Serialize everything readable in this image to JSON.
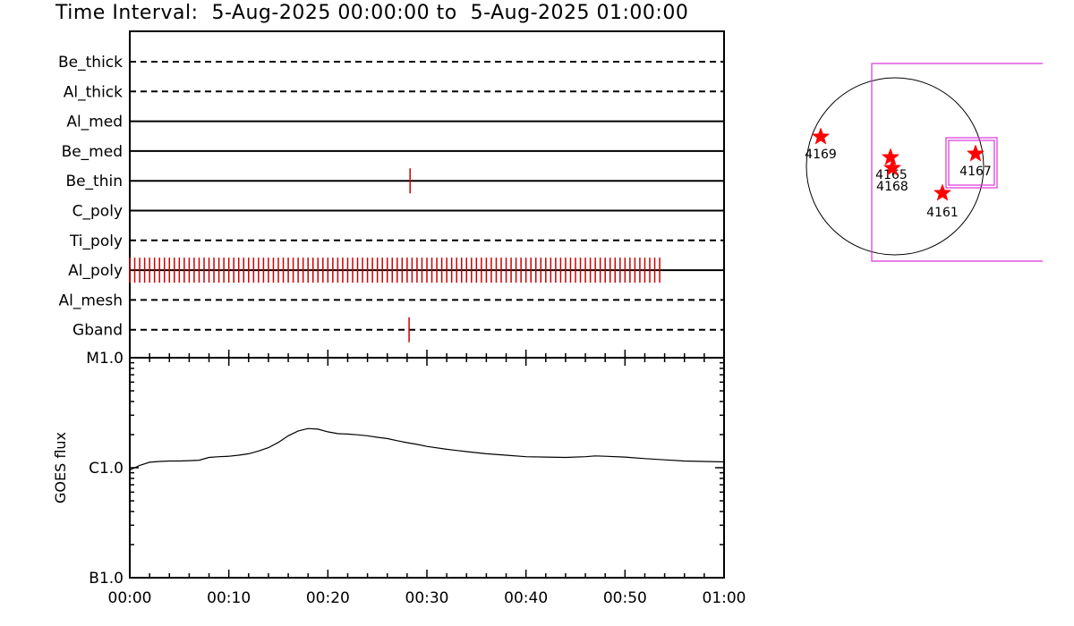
{
  "title": "Time Interval:  5-Aug-2025 00:00:00 to  5-Aug-2025 01:00:00",
  "colors": {
    "axis": "#000000",
    "event": "#cc0000",
    "star": "#ff0000",
    "box": "#dd33dd"
  },
  "chart_data": [
    {
      "type": "timeline",
      "x_unit": "minutes",
      "xlim": [
        0,
        60
      ],
      "channels": [
        {
          "name": "Be_thick",
          "style": "dashed",
          "events": []
        },
        {
          "name": "Al_thick",
          "style": "dashed",
          "events": []
        },
        {
          "name": "Al_med",
          "style": "solid",
          "events": []
        },
        {
          "name": "Be_med",
          "style": "solid",
          "events": []
        },
        {
          "name": "Be_thin",
          "style": "solid",
          "events": [
            28.3
          ]
        },
        {
          "name": "C_poly",
          "style": "solid",
          "events": []
        },
        {
          "name": "Ti_poly",
          "style": "dashed",
          "events": []
        },
        {
          "name": "Al_poly",
          "style": "solid",
          "events_range": [
            0,
            53.7
          ],
          "events_step": 0.5
        },
        {
          "name": "Al_mesh",
          "style": "dashed",
          "events": []
        },
        {
          "name": "Gband",
          "style": "dashed",
          "events": [
            28.2
          ]
        }
      ]
    },
    {
      "type": "line",
      "ylabel": "GOES flux",
      "y_scale": "log",
      "ylim": [
        1e-07,
        1e-05
      ],
      "ytick_labels": [
        "B1.0",
        "C1.0",
        "M1.0"
      ],
      "xtick_labels": [
        "00:00",
        "00:10",
        "00:20",
        "00:30",
        "00:40",
        "00:50",
        "01:00"
      ],
      "xlim": [
        0,
        60
      ],
      "x": [
        0,
        0.5,
        1,
        2,
        3,
        4,
        5,
        6,
        7,
        8,
        9,
        10,
        11,
        12,
        13,
        14,
        15,
        16,
        17,
        18,
        19,
        20,
        21,
        22,
        23,
        24,
        25,
        26,
        27,
        28,
        29,
        30,
        32,
        34,
        36,
        38,
        40,
        42,
        44,
        46,
        47,
        48,
        50,
        52,
        54,
        56,
        58,
        60
      ],
      "y": [
        9.5e-07,
        1e-06,
        1.05e-06,
        1.12e-06,
        1.14e-06,
        1.15e-06,
        1.15e-06,
        1.16e-06,
        1.17e-06,
        1.24e-06,
        1.26e-06,
        1.27e-06,
        1.3e-06,
        1.34e-06,
        1.42e-06,
        1.52e-06,
        1.7e-06,
        1.95e-06,
        2.16e-06,
        2.27e-06,
        2.24e-06,
        2.12e-06,
        2.04e-06,
        2.02e-06,
        1.99e-06,
        1.95e-06,
        1.89e-06,
        1.84e-06,
        1.76e-06,
        1.69e-06,
        1.63e-06,
        1.56e-06,
        1.47e-06,
        1.4e-06,
        1.34e-06,
        1.3e-06,
        1.26e-06,
        1.25e-06,
        1.24e-06,
        1.26e-06,
        1.28e-06,
        1.27e-06,
        1.25e-06,
        1.21e-06,
        1.18e-06,
        1.15e-06,
        1.14e-06,
        1.13e-06
      ]
    },
    {
      "type": "scatter",
      "series": [
        {
          "label": "4169"
        },
        {
          "label": "4165"
        },
        {
          "label": "4168"
        },
        {
          "label": "4161"
        },
        {
          "label": "4167"
        }
      ]
    }
  ]
}
